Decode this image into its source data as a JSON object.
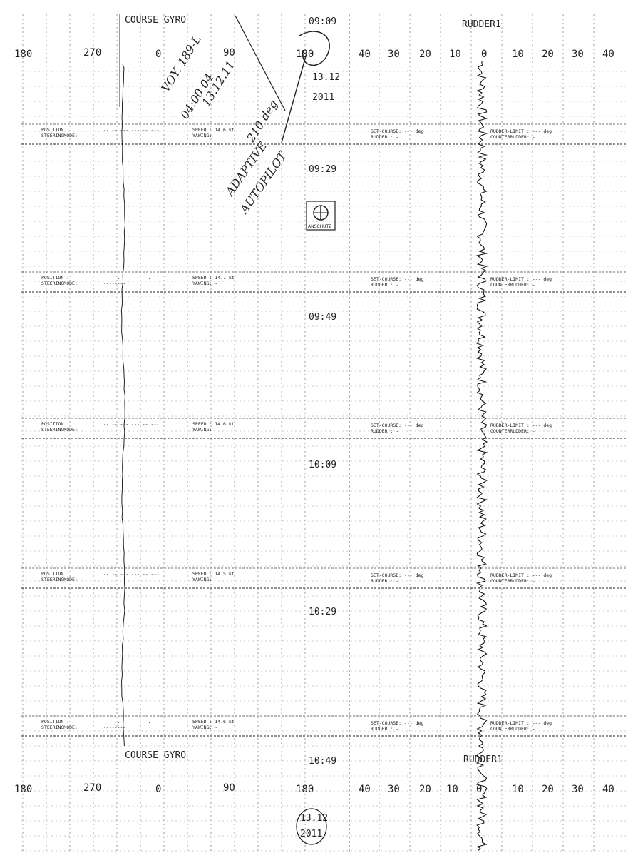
{
  "header": {
    "gyro_title": "COURSE GYRO",
    "rudder_title": "RUDDER1",
    "course_ticks": [
      "180",
      "270",
      "0",
      "90",
      "180"
    ],
    "rudder_ticks": [
      "40",
      "30",
      "20",
      "10",
      "0",
      "10",
      "20",
      "30",
      "40"
    ]
  },
  "start_date": {
    "day": "13.12",
    "year": "2011"
  },
  "logo_text": "ANSCHUTZ",
  "handwriting": {
    "lines": [
      "VOY. 189-L",
      "04:00 04",
      "13.12.11",
      "210 deg",
      "ADAPTIVE",
      "AUTOPILOT"
    ]
  },
  "segments": [
    {
      "time": "09:09",
      "speed": "SPEED : 14.6 kt"
    },
    {
      "time": "09:29",
      "speed": "SPEED : 14.7 kt"
    },
    {
      "time": "09:49",
      "speed": "SPEED : 14.6 kt"
    },
    {
      "time": "10:09",
      "speed": "SPEED : 14.5 kt"
    },
    {
      "time": "10:29",
      "speed": "SPEED : 14.6 kt"
    },
    {
      "time": "10:49",
      "speed": ""
    }
  ],
  "status": {
    "position_label": "POSITION :",
    "steering_label": "STEERINGMODE:",
    "position_value": "-- --.--- --- --.---",
    "steering_value": "--------",
    "yawing": "YAWING: -",
    "set_course": "SET-COURSE: --- deg",
    "rudder": "RUDDER : -",
    "rudder_limit": "RUDDER-LIMIT : --- deg",
    "counterrudder": "COUNTERRUDDER: -"
  },
  "footer": {
    "gyro_title": "COURSE GYRO",
    "rudder_title": "RUDDER1",
    "course_ticks": [
      "180",
      "270",
      "0",
      "90",
      "180"
    ],
    "rudder_ticks": [
      "40",
      "30",
      "20",
      "10",
      "0",
      "10",
      "20",
      "30",
      "40"
    ],
    "date_day": "13.12",
    "date_year": "2011"
  }
}
